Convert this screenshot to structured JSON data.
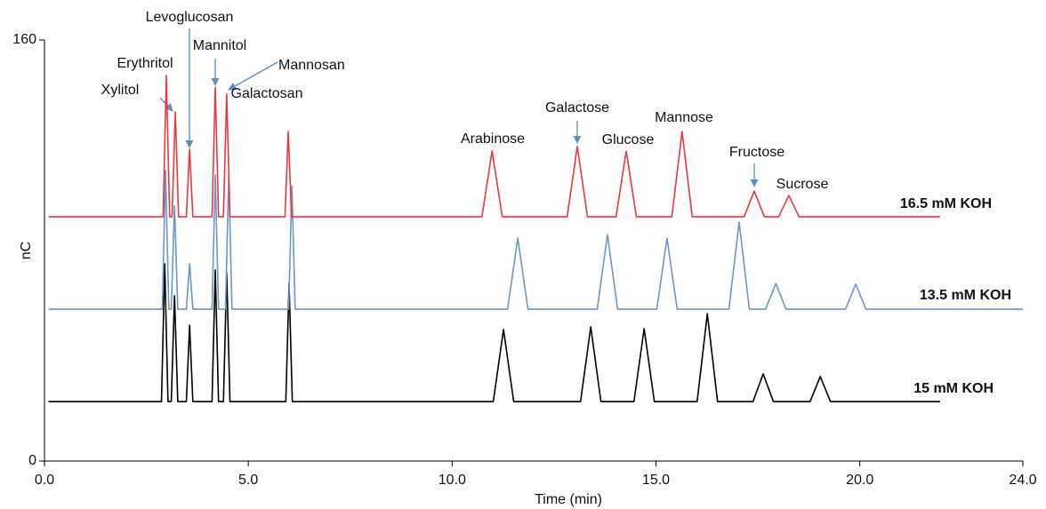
{
  "chart_data": {
    "type": "line",
    "xlabel": "Time (min)",
    "ylabel": "nC",
    "xlim": [
      0,
      24
    ],
    "ylim": [
      0,
      160
    ],
    "xticks": [
      {
        "value": 0,
        "label": "0.0"
      },
      {
        "value": 5,
        "label": "5.0"
      },
      {
        "value": 10,
        "label": "10.0"
      },
      {
        "value": 15,
        "label": "15.0"
      },
      {
        "value": 20,
        "label": "20.0"
      },
      {
        "value": 24,
        "label": "24.0"
      }
    ],
    "yticks": [
      0,
      160
    ],
    "annotations": [
      "Levoglucosan",
      "Erythritol",
      "Xylitol",
      "Mannitol",
      "Mannosan",
      "Galactosan",
      "Arabinose",
      "Galactose",
      "Glucose",
      "Mannose",
      "Fructose",
      "Sucrose"
    ],
    "series": [
      {
        "name": "16.5 mM KOH",
        "color": "#e8383d",
        "x": [
          0.1,
          2.91,
          2.99,
          3.07,
          3.13,
          3.21,
          3.29,
          3.48,
          3.56,
          3.64,
          4.11,
          4.19,
          4.27,
          4.39,
          4.47,
          4.55,
          5.9,
          5.98,
          6.06,
          10.73,
          10.98,
          11.23,
          12.82,
          13.07,
          13.32,
          14.02,
          14.27,
          14.52,
          15.39,
          15.64,
          15.89,
          17.16,
          17.41,
          17.66,
          18.01,
          18.26,
          18.51,
          21.97
        ],
        "values": [
          92.8,
          92.8,
          146.5,
          92.8,
          92.8,
          132.7,
          92.8,
          92.8,
          118.5,
          92.8,
          92.8,
          142,
          92.8,
          92.8,
          139.4,
          92.8,
          92.8,
          125.2,
          92.8,
          92.8,
          117.8,
          92.8,
          92.8,
          119.5,
          92.8,
          92.8,
          117.8,
          92.8,
          92.8,
          125.2,
          92.8,
          92.8,
          102.6,
          92.8,
          92.8,
          100.9,
          92.8,
          92.8
        ]
      },
      {
        "name": "13.5 mM KOH",
        "color": "#6b96c6",
        "x": [
          0.1,
          2.89,
          2.97,
          3.05,
          3.11,
          3.19,
          3.27,
          3.48,
          3.56,
          3.64,
          4.11,
          4.19,
          4.27,
          4.44,
          4.52,
          4.6,
          5.99,
          6.07,
          6.15,
          11.36,
          11.61,
          11.86,
          13.56,
          13.81,
          14.06,
          15.02,
          15.27,
          15.52,
          16.79,
          17.04,
          17.29,
          17.69,
          17.94,
          18.19,
          19.65,
          19.9,
          20.15,
          24
        ],
        "values": [
          57.7,
          57.7,
          110.4,
          57.7,
          57.7,
          96.9,
          57.7,
          57.7,
          74.9,
          57.7,
          57.7,
          108.7,
          57.7,
          57.7,
          108,
          57.7,
          57.7,
          104.6,
          57.7,
          57.7,
          84.7,
          57.7,
          57.7,
          86,
          57.7,
          57.7,
          84.7,
          57.7,
          57.7,
          90.8,
          57.7,
          57.7,
          67.5,
          57.7,
          57.7,
          67.2,
          57.7,
          57.7
        ]
      },
      {
        "name": "15 mM KOH",
        "color": "#000000",
        "x": [
          0.1,
          2.87,
          2.95,
          3.03,
          3.11,
          3.19,
          3.27,
          3.48,
          3.56,
          3.64,
          4.11,
          4.19,
          4.27,
          4.39,
          4.47,
          4.55,
          5.92,
          6.0,
          6.08,
          11.01,
          11.26,
          11.51,
          13.15,
          13.4,
          13.65,
          14.46,
          14.71,
          14.96,
          16.01,
          16.26,
          16.51,
          17.38,
          17.63,
          17.88,
          18.78,
          19.03,
          19.28,
          21.97
        ],
        "values": [
          22.6,
          22.6,
          74.9,
          22.6,
          22.6,
          62.8,
          22.6,
          22.6,
          51.6,
          22.6,
          22.6,
          72.6,
          22.6,
          22.6,
          71.6,
          22.6,
          22.6,
          67.5,
          22.6,
          22.6,
          50,
          22.6,
          22.6,
          51,
          22.6,
          22.6,
          50.3,
          22.6,
          22.6,
          56,
          22.6,
          22.6,
          33.1,
          22.6,
          22.6,
          32.1,
          22.6,
          22.6
        ]
      }
    ]
  }
}
